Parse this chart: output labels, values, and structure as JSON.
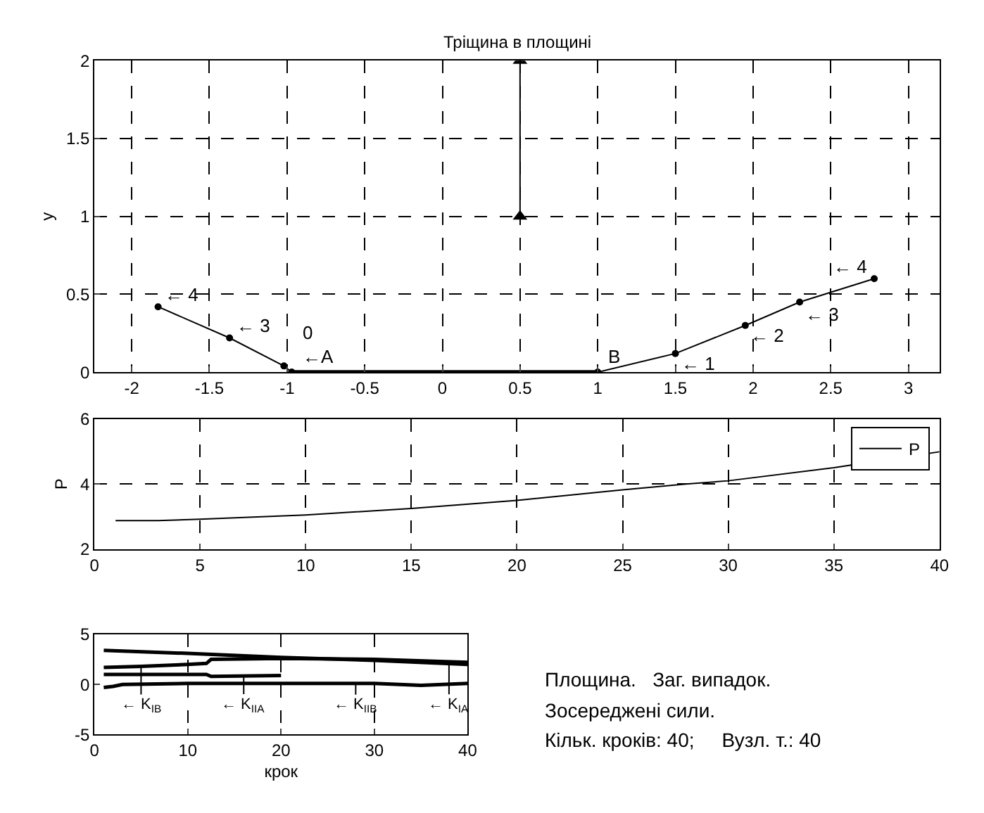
{
  "chart_data": [
    {
      "type": "line",
      "title": "Тріщина в площині",
      "ylabel": "y",
      "xlim": [
        -2.24,
        3.2
      ],
      "ylim": [
        0,
        2
      ],
      "xticks": [
        -2,
        -1.5,
        -1,
        -0.5,
        0,
        0.5,
        1,
        1.5,
        2,
        2.5,
        3
      ],
      "yticks": [
        0,
        0.5,
        1,
        1.5,
        2
      ],
      "grid": true,
      "legend": false,
      "marker": "circle",
      "line_style": "solid",
      "series": [
        {
          "color": "#000000",
          "x": [
            -0.97,
            -1.02,
            -1.37,
            -1.83
          ],
          "values": [
            0,
            0.04,
            0.22,
            0.42
          ]
        },
        {
          "color": "#000000",
          "x": [
            1,
            1.5,
            1.95,
            2.3,
            2.78
          ],
          "values": [
            0,
            0.12,
            0.3,
            0.45,
            0.6
          ]
        },
        {
          "color": "#000000",
          "x": [
            -0.97,
            1
          ],
          "values": [
            0,
            0
          ]
        },
        {
          "color": "#000000",
          "x": [
            0.5,
            0.5
          ],
          "values": [
            1,
            2
          ],
          "marker": "triangle"
        }
      ],
      "annotations": [
        {
          "text": "← 1",
          "x": 1.5,
          "y": 0.12
        },
        {
          "text": "← 2",
          "x": 1.95,
          "y": 0.3
        },
        {
          "text": "← 3",
          "x": 2.3,
          "y": 0.45
        },
        {
          "text": "← 4",
          "x": 2.78,
          "y": 0.6
        },
        {
          "text": "← 3",
          "x": -1.37,
          "y": 0.22
        },
        {
          "text": "← 4",
          "x": -1.83,
          "y": 0.42
        },
        {
          "text": "0",
          "x": -0.97,
          "y": 0
        },
        {
          "text": "←A",
          "x": -0.97,
          "y": 0
        },
        {
          "text": "B",
          "x": 1,
          "y": 0
        }
      ]
    },
    {
      "type": "line",
      "ylabel": "P",
      "xlim": [
        0,
        40
      ],
      "ylim": [
        2,
        6
      ],
      "xticks": [
        0,
        5,
        10,
        15,
        20,
        25,
        30,
        35,
        40
      ],
      "yticks": [
        2,
        4,
        6
      ],
      "grid": true,
      "legend": "top right",
      "line_style": "solid",
      "series": [
        {
          "name": "P",
          "color": "#000000",
          "x": [
            1,
            3,
            5,
            10,
            15,
            20,
            25,
            28,
            30,
            35,
            40
          ],
          "values": [
            2.88,
            2.88,
            2.92,
            3.05,
            3.25,
            3.5,
            3.82,
            4.0,
            4.1,
            4.5,
            4.99
          ]
        }
      ]
    },
    {
      "type": "line",
      "xlabel": "крок",
      "xlim": [
        0,
        40
      ],
      "ylim": [
        -5,
        5
      ],
      "xticks": [
        0,
        10,
        20,
        30,
        40
      ],
      "yticks": [
        -5,
        0,
        5
      ],
      "grid": "x",
      "legend": false,
      "line_style": "solid",
      "series": [
        {
          "color": "#000000",
          "x": [
            1,
            10,
            20,
            30,
            40
          ],
          "values": [
            3.4,
            3.1,
            2.7,
            2.4,
            2.0
          ]
        },
        {
          "color": "#000000",
          "x": [
            1,
            5,
            10,
            12,
            12.5,
            20,
            30,
            40
          ],
          "values": [
            1.7,
            1.8,
            2.0,
            2.1,
            2.5,
            2.6,
            2.5,
            2.2
          ]
        },
        {
          "color": "#000000",
          "x": [
            1,
            10,
            12,
            12.5,
            20
          ],
          "values": [
            1.0,
            1.0,
            1.0,
            0.8,
            0.9
          ]
        },
        {
          "color": "#000000",
          "x": [
            1,
            2,
            3,
            10,
            20,
            30,
            35,
            40
          ],
          "values": [
            -0.3,
            -0.2,
            0,
            0.1,
            0.1,
            0.1,
            -0.1,
            0.1
          ]
        }
      ],
      "annotations": [
        {
          "text": "← K$_{IA}$",
          "x": 38,
          "y": 2.1
        },
        {
          "text": "← K$_{IB}$",
          "x": 5,
          "y": 1.8
        },
        {
          "text": "← K$_{IIA}$",
          "x": 16,
          "y": 0.85
        },
        {
          "text": "← K$_{IIB}$",
          "x": 28,
          "y": 0.1
        },
        "Площина.   Заг. випадок.",
        "Зосереджені сили.",
        "Кільк. кроків: 40;     Вузл. т.: 40"
      ]
    }
  ]
}
